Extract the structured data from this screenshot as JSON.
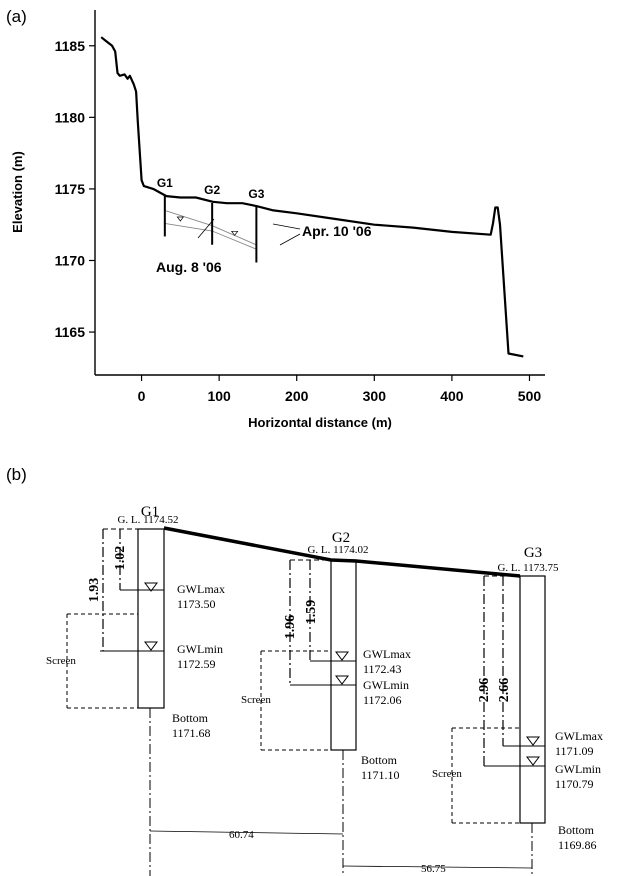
{
  "panel_a": {
    "label": "(a)",
    "chart_data": {
      "type": "line",
      "xlabel": "Horizontal distance (m)",
      "ylabel": "Elevation (m)",
      "xlim": [
        -60,
        520
      ],
      "ylim": [
        1162,
        1187.5
      ],
      "xticks": [
        0,
        100,
        200,
        300,
        400,
        500
      ],
      "yticks": [
        1165,
        1170,
        1175,
        1180,
        1185
      ],
      "grid": false,
      "series": [
        {
          "x": [
            -52,
            -45,
            -38,
            -34,
            -31,
            -28,
            -22,
            -18,
            -15,
            -10,
            -7,
            -5,
            0,
            3,
            15,
            32,
            50,
            70,
            92,
            110,
            130,
            148,
            170,
            200,
            250,
            300,
            350,
            400,
            450,
            453,
            456,
            459,
            462,
            473,
            492
          ],
          "y": [
            1185.6,
            1185.3,
            1185.0,
            1184.6,
            1183.1,
            1182.9,
            1183.0,
            1182.7,
            1182.9,
            1182.3,
            1181.8,
            1179.8,
            1175.6,
            1175.2,
            1175.0,
            1174.5,
            1174.4,
            1174.4,
            1174.1,
            1174.0,
            1174.0,
            1173.8,
            1173.5,
            1173.3,
            1172.9,
            1172.5,
            1172.3,
            1172.0,
            1171.8,
            1172.6,
            1173.7,
            1173.7,
            1172.5,
            1163.5,
            1163.3
          ]
        }
      ],
      "wells": [
        {
          "name": "G1",
          "x": 30,
          "top": 1174.52,
          "bottom": 1171.68
        },
        {
          "name": "G2",
          "x": 91,
          "top": 1174.02,
          "bottom": 1171.1
        },
        {
          "name": "G3",
          "x": 148,
          "top": 1173.75,
          "bottom": 1169.86
        }
      ],
      "groundwater_lines": [
        {
          "label": "Aug. 8 '06",
          "x": [
            30,
            91,
            148
          ],
          "y": [
            1172.59,
            1172.06,
            1170.79
          ]
        },
        {
          "label": "Apr. 10 '06",
          "x": [
            30,
            91,
            148
          ],
          "y": [
            1173.5,
            1172.43,
            1171.09
          ]
        }
      ]
    }
  },
  "panel_b": {
    "label": "(b)",
    "wells": [
      {
        "name": "G1",
        "gl_label": "G. L. 1174.52",
        "gwlmax_label": "GWLmax",
        "gwlmax_value": "1173.50",
        "gwlmin_label": "GWLmin",
        "gwlmin_value": "1172.59",
        "bottom_label": "Bottom",
        "bottom_value": "1171.68",
        "screen_label": "Screen",
        "depth_max": "1.02",
        "depth_min": "1.93"
      },
      {
        "name": "G2",
        "gl_label": "G. L. 1174.02",
        "gwlmax_label": "GWLmax",
        "gwlmax_value": "1172.43",
        "gwlmin_label": "GWLmin",
        "gwlmin_value": "1172.06",
        "bottom_label": "Bottom",
        "bottom_value": "1171.10",
        "screen_label": "Screen",
        "depth_max": "1.59",
        "depth_min": "1.96"
      },
      {
        "name": "G3",
        "gl_label": "G. L. 1173.75",
        "gwlmax_label": "GWLmax",
        "gwlmax_value": "1171.09",
        "gwlmin_label": "GWLmin",
        "gwlmin_value": "1170.79",
        "bottom_label": "Bottom",
        "bottom_value": "1169.86",
        "screen_label": "Screen",
        "depth_max": "2.66",
        "depth_min": "2.96"
      }
    ],
    "spacings": [
      "60.74",
      "56.75"
    ]
  }
}
